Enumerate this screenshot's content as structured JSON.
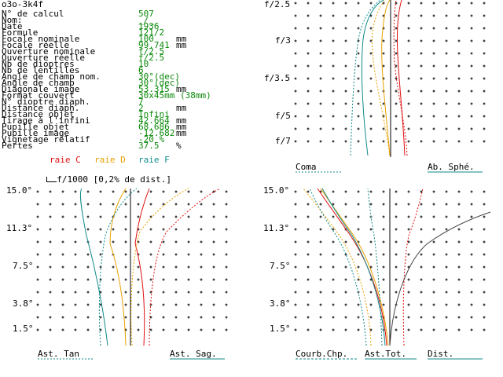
{
  "header": {
    "code": "o3o-3k4f"
  },
  "params": [
    {
      "label": "N° de calcul",
      "value": "507",
      "unit": ""
    },
    {
      "label": "Nom:",
      "value": "_/_",
      "unit": ""
    },
    {
      "label": "Date",
      "value": "1936",
      "unit": ""
    },
    {
      "label": "Formule",
      "value": "121/2",
      "unit": ""
    },
    {
      "label": "Focale nominale",
      "value": "100",
      "unit": "mm"
    },
    {
      "label": "Focale réelle",
      "value": "99.741",
      "unit": "mm"
    },
    {
      "label": "Ouverture nominale",
      "value": "f/2.5",
      "unit": ""
    },
    {
      "label": "Ouverture réelle",
      "value": "f/2.5",
      "unit": ""
    },
    {
      "label": "Nb de dioptres",
      "value": "10",
      "unit": ""
    },
    {
      "label": "Nb de lentilles",
      "value": "6",
      "unit": ""
    },
    {
      "label": "Angle de champ nom.",
      "value": "30°(dec)",
      "unit": ""
    },
    {
      "label": "Angle de champ",
      "value": "30°(dec)",
      "unit": ""
    },
    {
      "label": "Diagonale image",
      "value": "53.315",
      "unit": "mm"
    },
    {
      "label": "Format couvert",
      "value": "30x45mm (38mm)",
      "unit": ""
    },
    {
      "label": "N° dioptre diaph.",
      "value": "7",
      "unit": ""
    },
    {
      "label": "Distance diaph.",
      "value": "2",
      "unit": "mm"
    },
    {
      "label": "Distance objet",
      "value": "Infini",
      "unit": ""
    },
    {
      "label": "Tirage à l'infini",
      "value": "42.664",
      "unit": "mm"
    },
    {
      "label": "Pupille objet",
      "value": "68.686",
      "unit": "mm"
    },
    {
      "label": "Pupille image",
      "value": "-12.682",
      "unit": "mm"
    },
    {
      "label": "Vignetage relatif",
      "value": "-20 %",
      "unit": ""
    },
    {
      "label": "Pertes",
      "value": "37.5",
      "unit": "%"
    }
  ],
  "legend": {
    "raie_c": "raie C",
    "raie_d": "raie D",
    "raie_f": "raie F",
    "scale_note": "f/1000 [0,2% de dist.]"
  },
  "colors": {
    "c": "#e01010",
    "d": "#e8a000",
    "f": "#128a8a",
    "dist": "#444444"
  },
  "aperture_chart": {
    "ticks": [
      "f/2.5",
      "f/3",
      "f/3.5",
      "f/5",
      "f/7"
    ],
    "label_coma": "Coma",
    "label_sph": "Ab. Sphé."
  },
  "field_chart_left": {
    "ticks": [
      "15.0°",
      "11.3°",
      "7.5°",
      "3.8°",
      "1.5°"
    ],
    "label_tan": "Ast. Tan",
    "label_sag": "Ast. Sag."
  },
  "field_chart_right": {
    "ticks": [
      "15.0°",
      "11.3°",
      "7.5°",
      "3.8°",
      "1.5°"
    ],
    "label_curv": "Courb.Chp.",
    "label_ast": "Ast.Tot.",
    "label_dist": "Dist."
  }
}
